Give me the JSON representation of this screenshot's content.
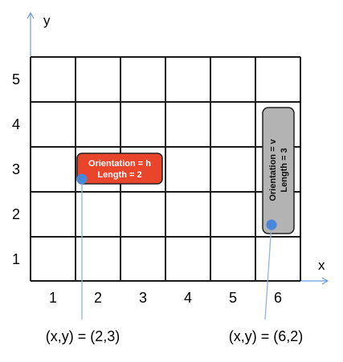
{
  "axes": {
    "x_label": "x",
    "y_label": "y"
  },
  "grid": {
    "columns": 6,
    "rows": 5
  },
  "x_ticks": [
    "1",
    "2",
    "3",
    "4",
    "5",
    "6"
  ],
  "y_ticks": [
    "1",
    "2",
    "3",
    "4",
    "5"
  ],
  "pieces": [
    {
      "id": "h",
      "orientation_text": "Orientation = h",
      "length_text": "Length = 2",
      "fill_color": "#e8452b",
      "text_color": "#ffffff",
      "anchor_coord": "(x,y) = (2,3)"
    },
    {
      "id": "v",
      "orientation_text": "Orientation = v",
      "length_text": "Length = 3",
      "fill_color": "#b3b3b3",
      "text_color": "#111111",
      "anchor_coord": "(x,y) = (6,2)"
    }
  ],
  "colors": {
    "grid": "#1a1a1a",
    "axis_arrow": "#6e9bd4",
    "anchor_dot": "#4a86d9",
    "leader_line": "#8fb3e3"
  }
}
